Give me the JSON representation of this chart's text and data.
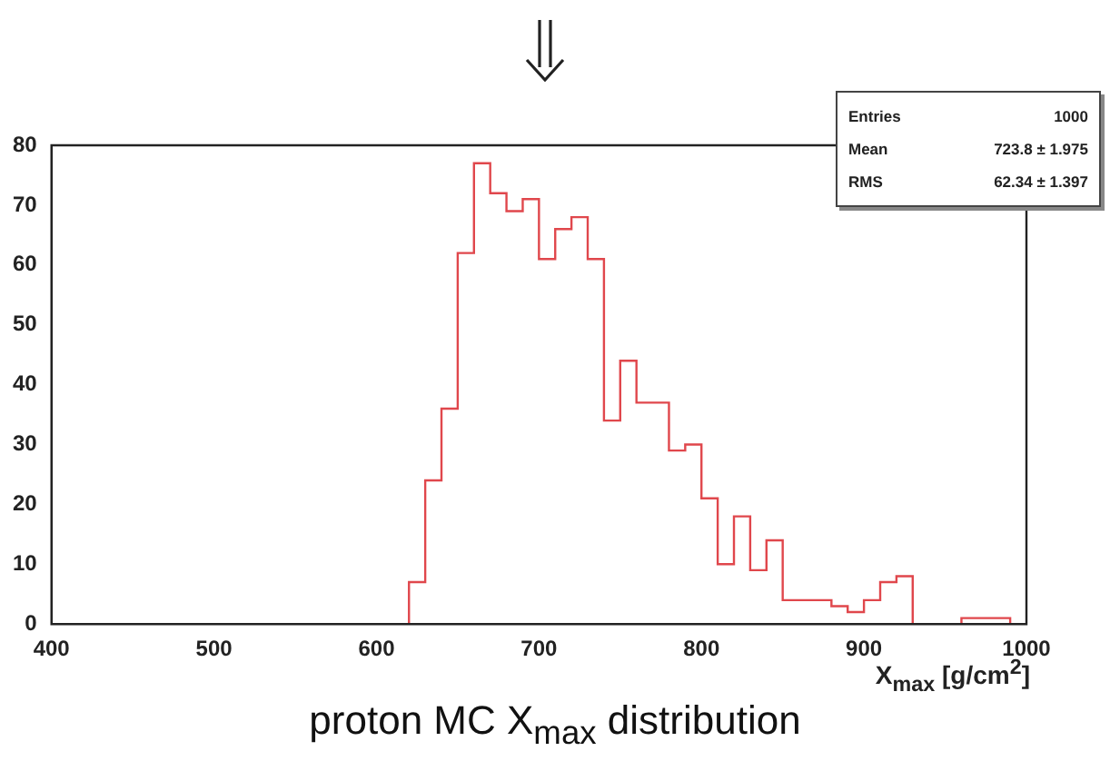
{
  "chart_data": {
    "type": "histogram",
    "title": "proton MC X$_{max}$ distribution",
    "xlabel": "X$_{max}$ [g/cm$^{2}$]",
    "annotations": [
      "Entries 1000",
      "Mean 723.8 ± 1.975",
      "RMS 62.34 ± 1.397"
    ],
    "bins": [
      400,
      410,
      420,
      430,
      440,
      450,
      460,
      470,
      480,
      490,
      500,
      510,
      520,
      530,
      540,
      550,
      560,
      570,
      580,
      590,
      600,
      610,
      620,
      630,
      640,
      650,
      660,
      670,
      680,
      690,
      700,
      710,
      720,
      730,
      740,
      750,
      760,
      770,
      780,
      790,
      800,
      810,
      820,
      830,
      840,
      850,
      860,
      870,
      880,
      890,
      900,
      910,
      920,
      930,
      940,
      950,
      960,
      970,
      980,
      990,
      1000
    ],
    "values": [
      0,
      0,
      0,
      0,
      0,
      0,
      0,
      0,
      0,
      0,
      0,
      0,
      0,
      0,
      0,
      0,
      0,
      0,
      0,
      0,
      0,
      0,
      7,
      24,
      36,
      62,
      77,
      72,
      69,
      71,
      61,
      66,
      68,
      61,
      34,
      44,
      37,
      37,
      29,
      30,
      21,
      10,
      18,
      9,
      14,
      4,
      4,
      4,
      3,
      2,
      4,
      7,
      8,
      0,
      0,
      0,
      1,
      1,
      1,
      0
    ],
    "color": "#e0474c",
    "xlim": [
      400,
      1000
    ],
    "xticks": [
      400,
      500,
      600,
      700,
      800,
      900,
      1000
    ],
    "ylim": [
      0,
      80
    ],
    "yticks": [
      0,
      10,
      20,
      30,
      40,
      50,
      60,
      70,
      80
    ],
    "grid": false,
    "legend": false
  }
}
